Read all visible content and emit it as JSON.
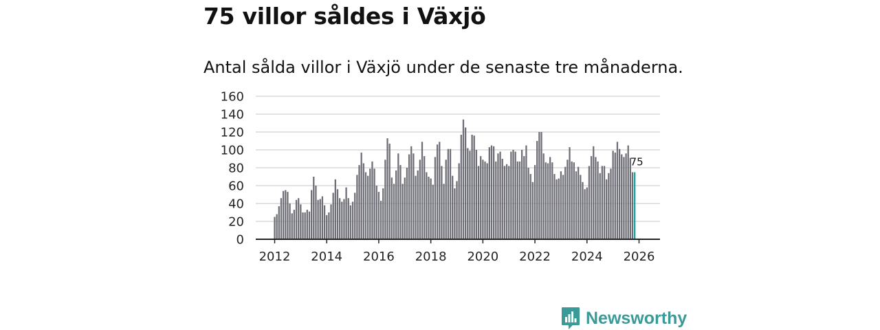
{
  "title": "75 villor såldes i Växjö",
  "subtitle": "Antal sålda villor i Växjö under de senaste tre månaderna.",
  "brand": {
    "name": "Newsworthy"
  },
  "colors": {
    "bar": "#6e6e76",
    "highlight": "#1e9d9d",
    "grid": "#d9d9d9",
    "axis": "#222222",
    "brand": "#3a9a98"
  },
  "chart_data": {
    "type": "bar",
    "title": "75 villor såldes i Växjö",
    "xlabel": "",
    "ylabel": "",
    "ylim": [
      0,
      160
    ],
    "yticks": [
      0,
      20,
      40,
      60,
      80,
      100,
      120,
      140,
      160
    ],
    "xlim": [
      2012,
      2026.6
    ],
    "xticks": [
      2012,
      2014,
      2016,
      2018,
      2020,
      2022,
      2024,
      2026
    ],
    "start": "2012-01",
    "period": "monthly (rolling three-month total)",
    "annotation": {
      "text": "75",
      "index": "last"
    },
    "values": [
      25,
      28,
      37,
      46,
      54,
      55,
      53,
      40,
      29,
      33,
      44,
      46,
      39,
      30,
      30,
      33,
      31,
      55,
      70,
      60,
      44,
      45,
      48,
      38,
      27,
      30,
      39,
      52,
      67,
      56,
      46,
      42,
      45,
      58,
      46,
      38,
      42,
      52,
      72,
      83,
      97,
      85,
      75,
      71,
      79,
      87,
      79,
      60,
      53,
      43,
      57,
      89,
      113,
      107,
      69,
      62,
      77,
      96,
      83,
      62,
      69,
      80,
      95,
      104,
      96,
      71,
      77,
      89,
      109,
      93,
      75,
      70,
      68,
      61,
      92,
      106,
      109,
      82,
      62,
      89,
      101,
      101,
      71,
      57,
      65,
      85,
      117,
      134,
      125,
      102,
      99,
      117,
      116,
      100,
      82,
      93,
      89,
      87,
      85,
      103,
      105,
      104,
      87,
      96,
      98,
      90,
      82,
      84,
      82,
      98,
      100,
      98,
      87,
      87,
      100,
      93,
      105,
      80,
      73,
      64,
      83,
      110,
      120,
      120,
      96,
      86,
      85,
      92,
      86,
      73,
      67,
      68,
      76,
      72,
      81,
      89,
      103,
      87,
      86,
      76,
      81,
      72,
      64,
      56,
      58,
      82,
      93,
      104,
      92,
      87,
      74,
      82,
      82,
      67,
      74,
      79,
      99,
      97,
      109,
      101,
      95,
      92,
      96,
      105,
      91,
      75,
      75
    ]
  }
}
